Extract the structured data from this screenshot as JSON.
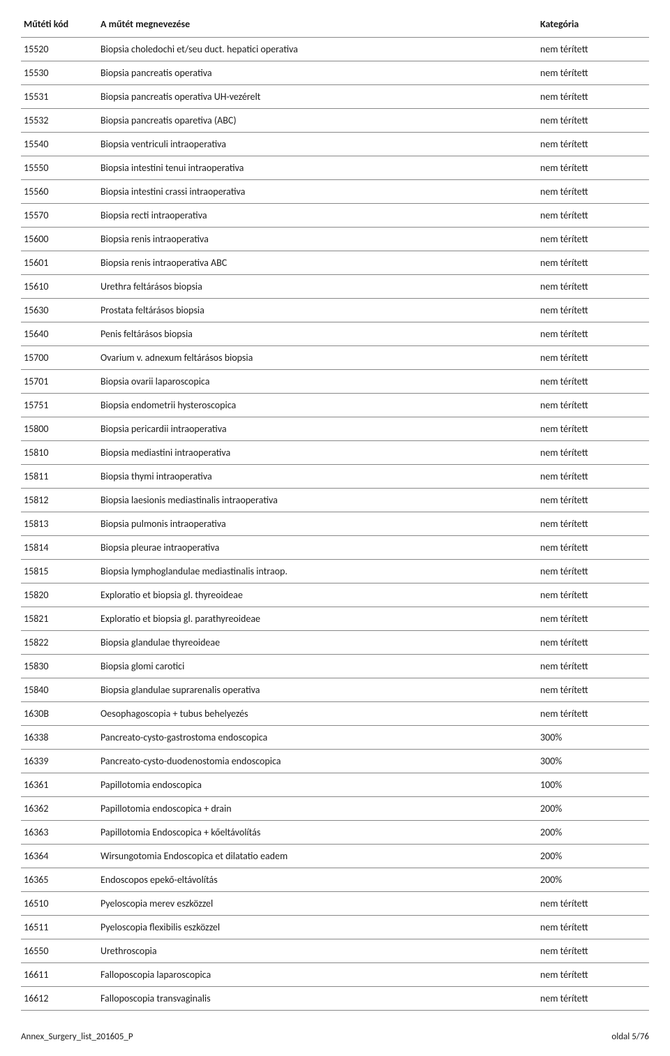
{
  "table": {
    "headers": {
      "code": "Műtéti kód",
      "name": "A műtét megnevezése",
      "category": "Kategória"
    },
    "rows": [
      {
        "code": "15520",
        "name": "Biopsia choledochi et/seu duct. hepatici operativa",
        "category": "nem térített"
      },
      {
        "code": "15530",
        "name": "Biopsia pancreatis operativa",
        "category": "nem térített"
      },
      {
        "code": "15531",
        "name": "Biopsia pancreatis operativa UH-vezérelt",
        "category": "nem térített"
      },
      {
        "code": "15532",
        "name": "Biopsia pancreatis oparetiva (ABC)",
        "category": "nem térített"
      },
      {
        "code": "15540",
        "name": "Biopsia ventriculi intraoperativa",
        "category": "nem térített"
      },
      {
        "code": "15550",
        "name": "Biopsia intestini tenui intraoperativa",
        "category": "nem térített"
      },
      {
        "code": "15560",
        "name": "Biopsia intestini crassi intraoperativa",
        "category": "nem térített"
      },
      {
        "code": "15570",
        "name": "Biopsia recti intraoperativa",
        "category": "nem térített"
      },
      {
        "code": "15600",
        "name": "Biopsia renis intraoperativa",
        "category": "nem térített"
      },
      {
        "code": "15601",
        "name": "Biopsia renis intraoperativa ABC",
        "category": "nem térített"
      },
      {
        "code": "15610",
        "name": "Urethra feltárásos biopsia",
        "category": "nem térített"
      },
      {
        "code": "15630",
        "name": "Prostata feltárásos biopsia",
        "category": "nem térített"
      },
      {
        "code": "15640",
        "name": "Penis feltárásos biopsia",
        "category": "nem térített"
      },
      {
        "code": "15700",
        "name": "Ovarium v. adnexum feltárásos biopsia",
        "category": "nem térített"
      },
      {
        "code": "15701",
        "name": "Biopsia ovarii laparoscopica",
        "category": "nem térített"
      },
      {
        "code": "15751",
        "name": "Biopsia endometrii hysteroscopica",
        "category": "nem térített"
      },
      {
        "code": "15800",
        "name": "Biopsia pericardii intraoperativa",
        "category": "nem térített"
      },
      {
        "code": "15810",
        "name": "Biopsia mediastini intraoperativa",
        "category": "nem térített"
      },
      {
        "code": "15811",
        "name": "Biopsia thymi intraoperativa",
        "category": "nem térített"
      },
      {
        "code": "15812",
        "name": "Biopsia laesionis mediastinalis intraoperativa",
        "category": "nem térített"
      },
      {
        "code": "15813",
        "name": "Biopsia pulmonis intraoperativa",
        "category": "nem térített"
      },
      {
        "code": "15814",
        "name": "Biopsia pleurae intraoperativa",
        "category": "nem térített"
      },
      {
        "code": "15815",
        "name": "Biopsia lymphoglandulae mediastinalis intraop.",
        "category": "nem térített"
      },
      {
        "code": "15820",
        "name": "Exploratio et biopsia gl. thyreoideae",
        "category": "nem térített"
      },
      {
        "code": "15821",
        "name": "Exploratio et biopsia gl. parathyreoideae",
        "category": "nem térített"
      },
      {
        "code": "15822",
        "name": "Biopsia glandulae thyreoideae",
        "category": "nem térített"
      },
      {
        "code": "15830",
        "name": "Biopsia glomi carotici",
        "category": "nem térített"
      },
      {
        "code": "15840",
        "name": "Biopsia glandulae suprarenalis operativa",
        "category": "nem térített"
      },
      {
        "code": "1630B",
        "name": "Oesophagoscopia + tubus behelyezés",
        "category": "nem térített"
      },
      {
        "code": "16338",
        "name": "Pancreato-cysto-gastrostoma endoscopica",
        "category": "300%"
      },
      {
        "code": "16339",
        "name": "Pancreato-cysto-duodenostomia endoscopica",
        "category": "300%"
      },
      {
        "code": "16361",
        "name": "Papillotomia endoscopica",
        "category": "100%"
      },
      {
        "code": "16362",
        "name": "Papillotomia endoscopica + drain",
        "category": "200%"
      },
      {
        "code": "16363",
        "name": "Papillotomia Endoscopica + kőeltávolítás",
        "category": "200%"
      },
      {
        "code": "16364",
        "name": "Wirsungotomia Endoscopica et dilatatio eadem",
        "category": "200%"
      },
      {
        "code": "16365",
        "name": "Endoscopos epekő-eltávolítás",
        "category": "200%"
      },
      {
        "code": "16510",
        "name": "Pyeloscopia merev eszközzel",
        "category": "nem térített"
      },
      {
        "code": "16511",
        "name": "Pyeloscopia flexibilis eszközzel",
        "category": "nem térített"
      },
      {
        "code": "16550",
        "name": "Urethroscopia",
        "category": "nem térített"
      },
      {
        "code": "16611",
        "name": "Falloposcopia laparoscopica",
        "category": "nem térített"
      },
      {
        "code": "16612",
        "name": "Falloposcopia transvaginalis",
        "category": "nem térített"
      }
    ]
  },
  "footer": {
    "left": "Annex_Surgery_list_201605_P",
    "right": "oldal 5/76"
  }
}
